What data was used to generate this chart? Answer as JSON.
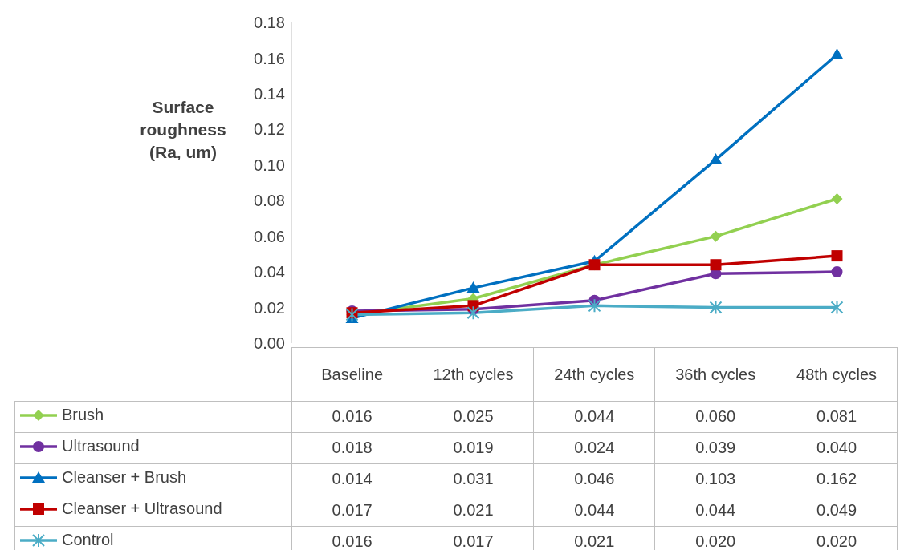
{
  "chart_data": {
    "type": "line",
    "ylabel": "Surface roughness (Ra, um)",
    "categories": [
      "Baseline",
      "12th cycles",
      "24th cycles",
      "36th cycles",
      "48th cycles"
    ],
    "series": [
      {
        "name": "Brush",
        "color": "#92d050",
        "marker": "diamond",
        "values": [
          0.016,
          0.025,
          0.044,
          0.06,
          0.081
        ],
        "value_labels": [
          "0.016",
          "0.025",
          "0.044",
          "0.060",
          "0.081"
        ]
      },
      {
        "name": "Ultrasound",
        "color": "#7030a0",
        "marker": "circle",
        "values": [
          0.018,
          0.019,
          0.024,
          0.039,
          0.04
        ],
        "value_labels": [
          "0.018",
          "0.019",
          "0.024",
          "0.039",
          "0.040"
        ]
      },
      {
        "name": "Cleanser + Brush",
        "color": "#0070c0",
        "marker": "triangle",
        "values": [
          0.014,
          0.031,
          0.046,
          0.103,
          0.162
        ],
        "value_labels": [
          "0.014",
          "0.031",
          "0.046",
          "0.103",
          "0.162"
        ]
      },
      {
        "name": "Cleanser + Ultrasound",
        "color": "#c00000",
        "marker": "square",
        "values": [
          0.017,
          0.021,
          0.044,
          0.044,
          0.049
        ],
        "value_labels": [
          "0.017",
          "0.021",
          "0.044",
          "0.044",
          "0.049"
        ]
      },
      {
        "name": "Control",
        "color": "#4bacc6",
        "marker": "cross",
        "values": [
          0.016,
          0.017,
          0.021,
          0.02,
          0.02
        ],
        "value_labels": [
          "0.016",
          "0.017",
          "0.021",
          "0.020",
          "0.020"
        ]
      }
    ],
    "ylim": [
      0,
      0.18
    ],
    "yticks": [
      {
        "value": 0,
        "label": "0.00"
      },
      {
        "value": 0.02,
        "label": "0.02"
      },
      {
        "value": 0.04,
        "label": "0.04"
      },
      {
        "value": 0.06,
        "label": "0.06"
      },
      {
        "value": 0.08,
        "label": "0.08"
      },
      {
        "value": 0.1,
        "label": "0.10"
      },
      {
        "value": 0.12,
        "label": "0.12"
      },
      {
        "value": 0.14,
        "label": "0.14"
      },
      {
        "value": 0.16,
        "label": "0.16"
      },
      {
        "value": 0.18,
        "label": "0.18"
      }
    ],
    "grid": false,
    "legend": "bottom",
    "line_style": "solid"
  }
}
